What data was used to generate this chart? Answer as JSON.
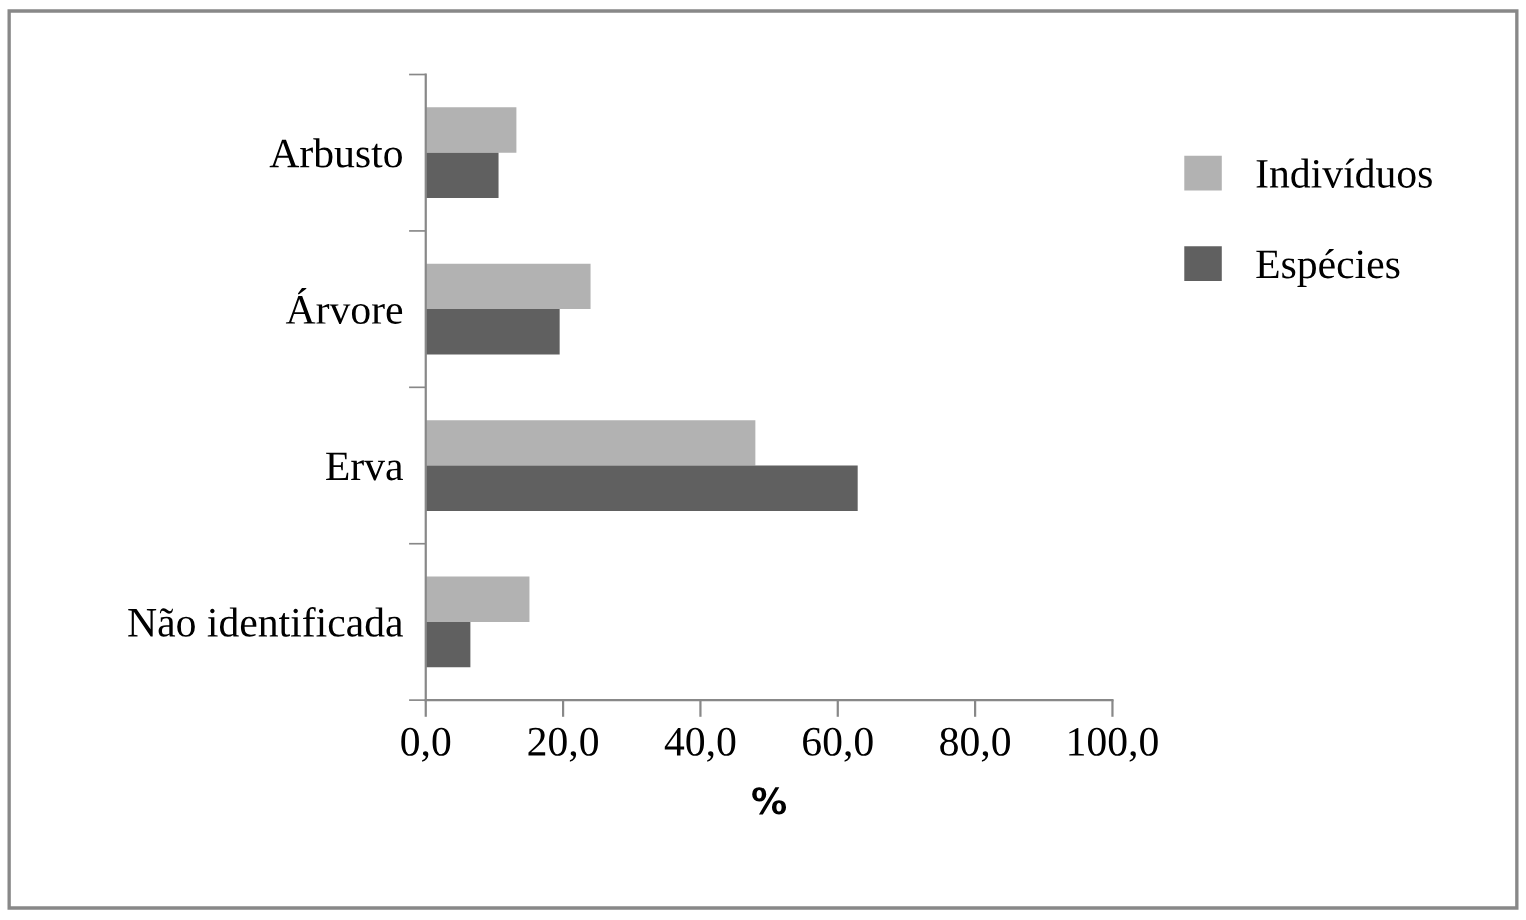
{
  "chart_data": {
    "type": "bar",
    "orientation": "horizontal",
    "xlabel": "%",
    "categories": [
      "Arbusto",
      "Árvore",
      "Erva",
      "Não identificada"
    ],
    "series": [
      {
        "name": "Indivíduos",
        "color": "#b2b2b2",
        "values": [
          13.2,
          24.0,
          48.0,
          15.1
        ]
      },
      {
        "name": "Espécies",
        "color": "#606060",
        "values": [
          10.6,
          19.5,
          62.9,
          6.5
        ]
      }
    ],
    "xlim": [
      0,
      100
    ],
    "xticks": [
      {
        "value": 0,
        "label": "0,0"
      },
      {
        "value": 20,
        "label": "20,0"
      },
      {
        "value": 40,
        "label": "40,0"
      },
      {
        "value": 60,
        "label": "60,0"
      },
      {
        "value": 80,
        "label": "80,0"
      },
      {
        "value": 100,
        "label": "100,0"
      }
    ],
    "grid": false,
    "legend": "top right"
  }
}
